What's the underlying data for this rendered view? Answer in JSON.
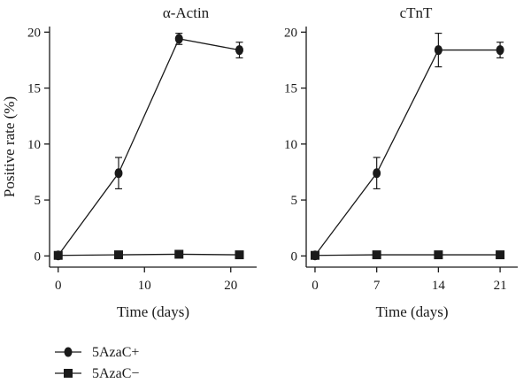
{
  "chart_data": [
    {
      "type": "line",
      "title": "α-Actin",
      "xlabel": "Time (days)",
      "ylabel": "Positive rate (%)",
      "xlim": [
        -1,
        23
      ],
      "ylim": [
        -1,
        20.5
      ],
      "xticks": [
        0,
        10,
        20
      ],
      "yticks": [
        0,
        5,
        10,
        15,
        20
      ],
      "grid": false,
      "series": [
        {
          "name": "5AzaC+",
          "marker": "circle",
          "x": [
            0,
            7,
            14,
            21
          ],
          "y": [
            0.05,
            7.4,
            19.4,
            18.4
          ],
          "err": [
            0.1,
            1.4,
            0.5,
            0.7
          ]
        },
        {
          "name": "5AzaC−",
          "marker": "square",
          "x": [
            0,
            7,
            14,
            21
          ],
          "y": [
            0.05,
            0.1,
            0.15,
            0.1
          ],
          "err": [
            0,
            0,
            0,
            0
          ]
        }
      ]
    },
    {
      "type": "line",
      "title": "cTnT",
      "xlabel": "Time (days)",
      "ylabel": "",
      "xlim": [
        -1,
        23
      ],
      "ylim": [
        -1,
        20.5
      ],
      "xticks": [
        0,
        7,
        14,
        21
      ],
      "yticks": [
        0,
        5,
        10,
        15,
        20
      ],
      "grid": false,
      "series": [
        {
          "name": "5AzaC+",
          "marker": "circle",
          "x": [
            0,
            7,
            14,
            21
          ],
          "y": [
            0.05,
            7.4,
            18.4,
            18.4
          ],
          "err": [
            0.1,
            1.4,
            1.5,
            0.7
          ]
        },
        {
          "name": "5AzaC−",
          "marker": "square",
          "x": [
            0,
            7,
            14,
            21
          ],
          "y": [
            0.05,
            0.1,
            0.1,
            0.1
          ],
          "err": [
            0,
            0,
            0,
            0
          ]
        }
      ]
    }
  ],
  "legend": {
    "placement": "bottom-left",
    "items": [
      {
        "label": "5AzaC+",
        "marker": "circle"
      },
      {
        "label": "5AzaC−",
        "marker": "square"
      }
    ]
  },
  "colors": {
    "line": "#1a1a1a",
    "background": "#ffffff"
  }
}
